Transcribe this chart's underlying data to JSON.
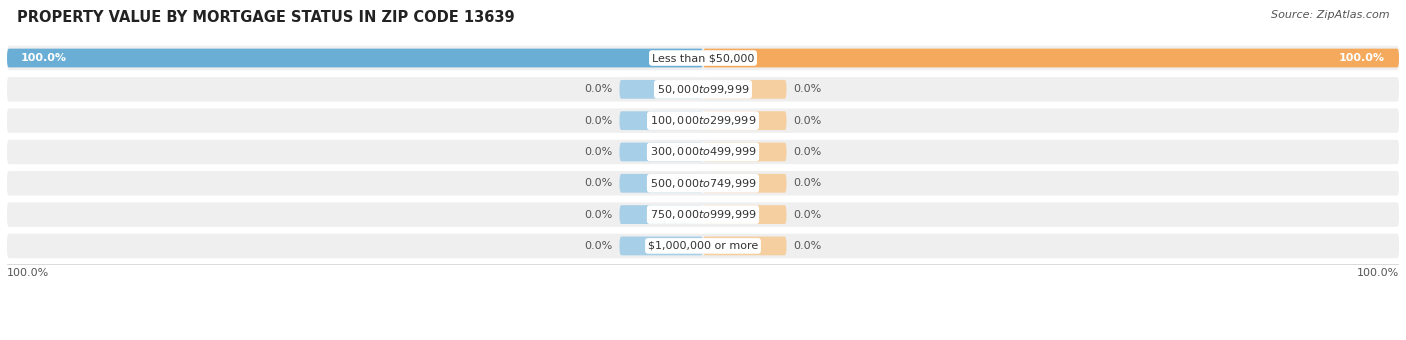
{
  "title": "PROPERTY VALUE BY MORTGAGE STATUS IN ZIP CODE 13639",
  "source": "Source: ZipAtlas.com",
  "categories": [
    "Less than $50,000",
    "$50,000 to $99,999",
    "$100,000 to $299,999",
    "$300,000 to $499,999",
    "$500,000 to $749,999",
    "$750,000 to $999,999",
    "$1,000,000 or more"
  ],
  "without_mortgage": [
    100.0,
    0.0,
    0.0,
    0.0,
    0.0,
    0.0,
    0.0
  ],
  "with_mortgage": [
    100.0,
    0.0,
    0.0,
    0.0,
    0.0,
    0.0,
    0.0
  ],
  "color_without": "#6aaed6",
  "color_with": "#f4a95c",
  "color_without_stub": "#a8cfe8",
  "color_with_stub": "#f5cfa0",
  "row_bg": "#efefef",
  "row_border": "#e0e0e0",
  "title_fontsize": 10.5,
  "label_fontsize": 8,
  "category_fontsize": 8,
  "legend_fontsize": 8,
  "footer_fontsize": 8
}
